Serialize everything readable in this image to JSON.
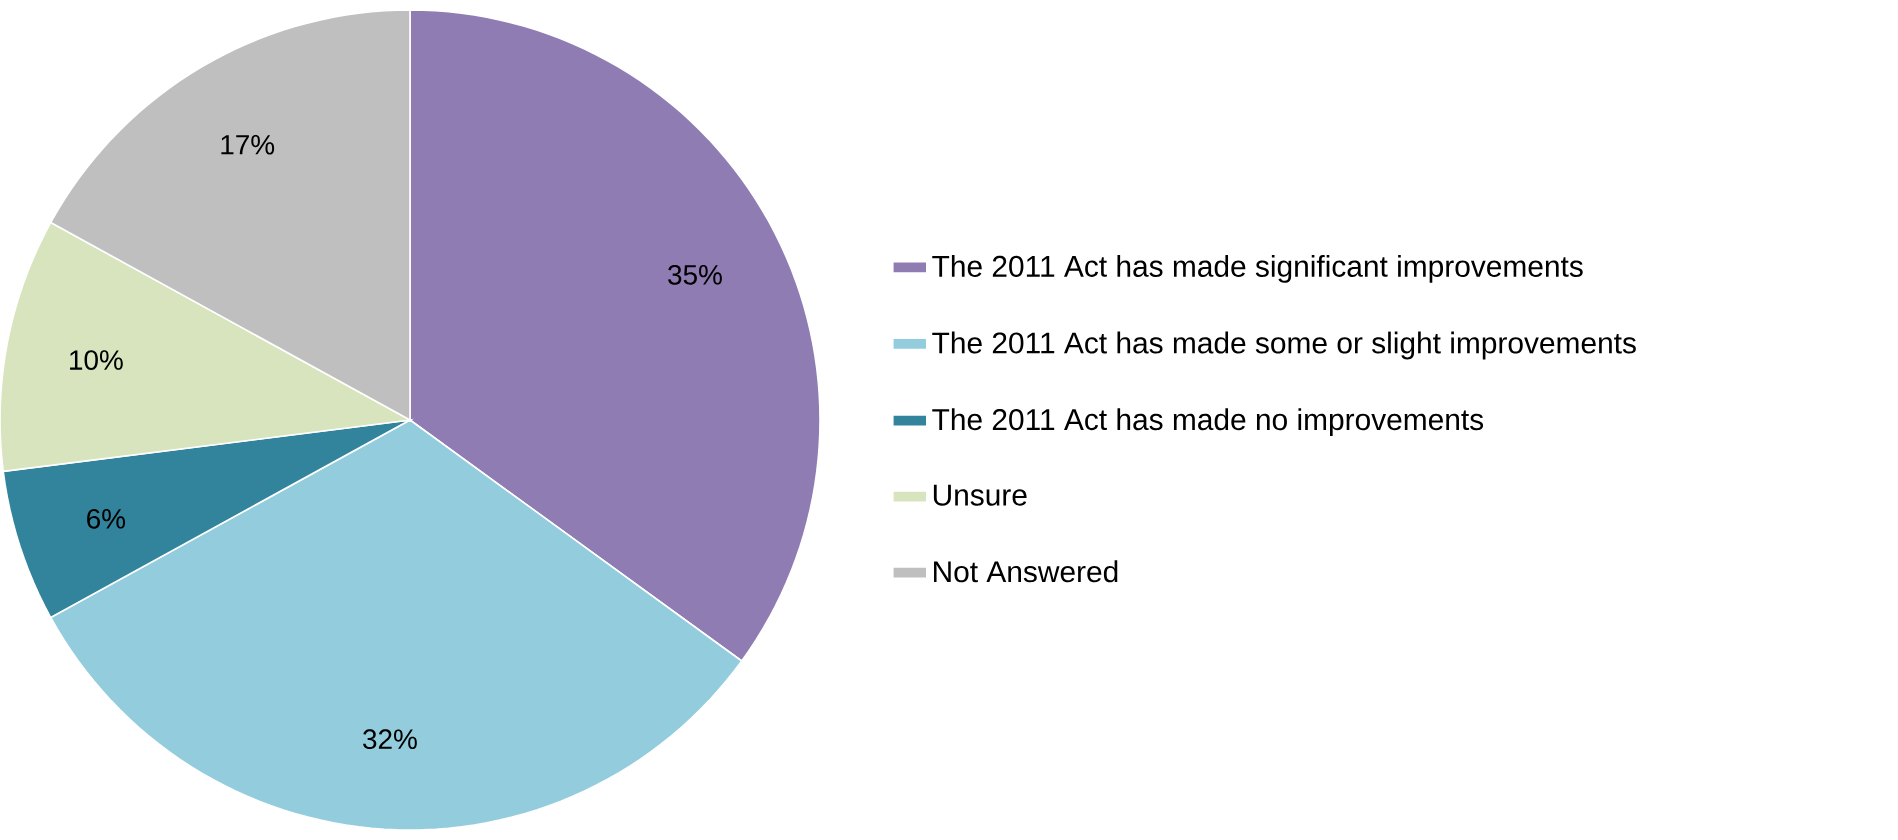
{
  "chart_data": {
    "type": "pie",
    "categories": [
      "The 2011 Act has made significant improvements",
      "The 2011 Act has made some or slight improvements",
      "The 2011 Act has made no improvements",
      "Unsure",
      "Not Answered"
    ],
    "values": [
      35,
      32,
      6,
      10,
      17
    ],
    "value_labels": [
      "35%",
      "32%",
      "6%",
      "10%",
      "17%"
    ],
    "colors": [
      "#8e7cb3",
      "#93cddd",
      "#31849b",
      "#d7e4bd",
      "#bfbfbf"
    ],
    "legend": "right"
  }
}
